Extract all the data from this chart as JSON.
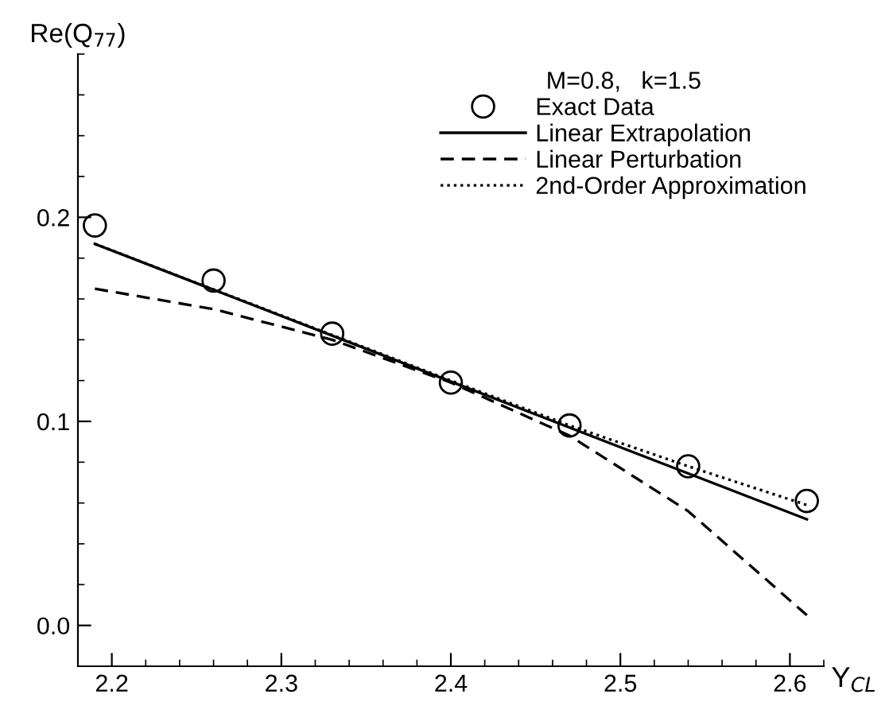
{
  "chart_data": {
    "type": "line",
    "xlabel": "Y$_{CL}$",
    "ylabel": "Re(Q$_{77}$)",
    "legend_title": "M=0.8,   k=1.5",
    "xlim": [
      2.18,
      2.62
    ],
    "ylim": [
      -0.02,
      0.28
    ],
    "xticks": [
      2.2,
      2.3,
      2.4,
      2.5,
      2.6
    ],
    "yticks": [
      {
        "value": 0,
        "label": "0.0"
      },
      0.1,
      0.2
    ],
    "legend": "top right",
    "grid": false,
    "series": [
      {
        "name": "Exact Data",
        "type": "scatter",
        "marker": "circle",
        "color": "#000000",
        "x": [
          2.19,
          2.26,
          2.33,
          2.4,
          2.47,
          2.54,
          2.61
        ],
        "values": [
          0.196,
          0.169,
          0.143,
          0.119,
          0.098,
          0.078,
          0.061
        ]
      },
      {
        "name": "Linear Extrapolation",
        "line_style": "solid",
        "color": "#000000",
        "x": [
          2.19,
          2.61
        ],
        "values": [
          0.187,
          0.052
        ]
      },
      {
        "name": "Linear Perturbation",
        "line_style": "dashed",
        "color": "#000000",
        "x": [
          2.19,
          2.26,
          2.33,
          2.4,
          2.47,
          2.54,
          2.61
        ],
        "values": [
          0.165,
          0.155,
          0.14,
          0.119,
          0.093,
          0.056,
          0.005
        ]
      },
      {
        "name": "2nd-Order Approximation",
        "line_style": "dotted",
        "color": "#000000",
        "x": [
          2.19,
          2.4,
          2.47,
          2.54,
          2.61
        ],
        "values": [
          0.187,
          0.12,
          0.098,
          0.078,
          0.059
        ]
      }
    ]
  }
}
